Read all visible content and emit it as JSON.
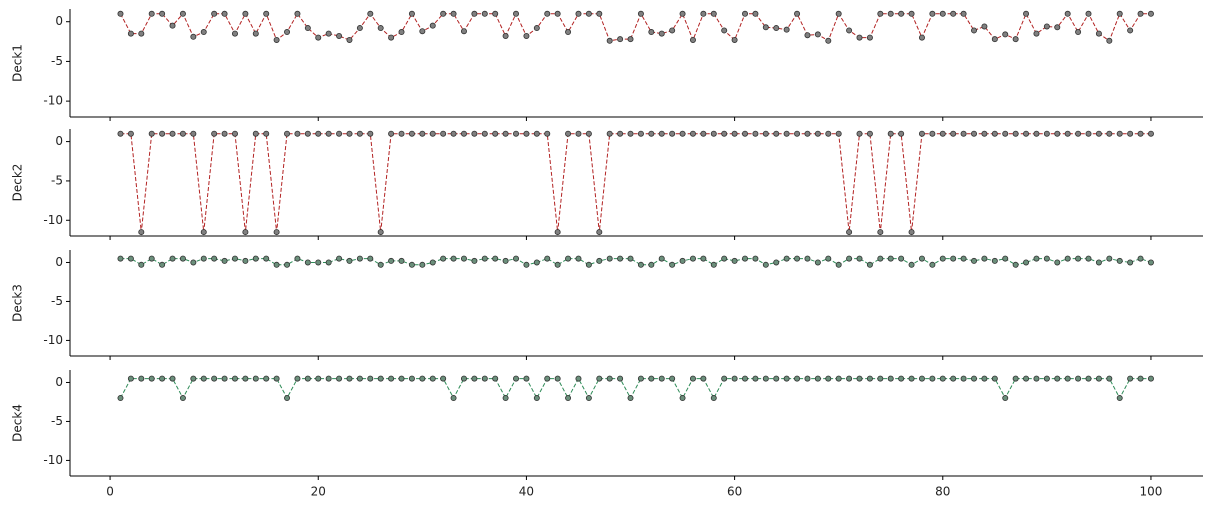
{
  "chart_data": [
    {
      "type": "line",
      "ylabel": "Deck1",
      "x": [
        1,
        2,
        3,
        4,
        5,
        6,
        7,
        8,
        9,
        10,
        11,
        12,
        13,
        14,
        15,
        16,
        17,
        18,
        19,
        20,
        21,
        22,
        23,
        24,
        25,
        26,
        27,
        28,
        29,
        30,
        31,
        32,
        33,
        34,
        35,
        36,
        37,
        38,
        39,
        40,
        41,
        42,
        43,
        44,
        45,
        46,
        47,
        48,
        49,
        50,
        51,
        52,
        53,
        54,
        55,
        56,
        57,
        58,
        59,
        60,
        61,
        62,
        63,
        64,
        65,
        66,
        67,
        68,
        69,
        70,
        71,
        72,
        73,
        74,
        75,
        76,
        77,
        78,
        79,
        80,
        81,
        82,
        83,
        84,
        85,
        86,
        87,
        88,
        89,
        90,
        91,
        92,
        93,
        94,
        95,
        96,
        97,
        98,
        99,
        100
      ],
      "series": [
        {
          "color": "#b22222",
          "marker_color": "#808080",
          "values": [
            1,
            -1.5,
            -1.5,
            1,
            1,
            -0.5,
            1,
            -1.9,
            -1.3,
            1,
            1,
            -1.5,
            1,
            -1.5,
            1,
            -2.3,
            -1.3,
            1,
            -0.8,
            -2,
            -1.5,
            -1.8,
            -2.3,
            -0.8,
            1,
            -0.8,
            -2,
            -1.3,
            1,
            -1.2,
            -0.5,
            1,
            1,
            -1.2,
            1,
            1,
            1,
            -1.8,
            1,
            -1.8,
            -0.8,
            1,
            1,
            -1.3,
            1,
            1,
            1,
            -2.4,
            -2.2,
            -2.2,
            1,
            -1.3,
            -1.5,
            -1.1,
            1,
            -2.3,
            1,
            1,
            -1.1,
            -2.3,
            1,
            1,
            -0.7,
            -0.8,
            -1,
            1,
            -1.7,
            -1.6,
            -2.4,
            1,
            -1.1,
            -2,
            -2,
            1,
            1,
            1,
            1,
            -2,
            1,
            1,
            1,
            1,
            -1.1,
            -0.6,
            -2.2,
            -1.6,
            -2.2,
            1,
            -1.5,
            -0.6,
            -0.7,
            1,
            -1.3,
            1,
            -1.5,
            -2.4,
            1,
            -1.1,
            1,
            1
          ]
        }
      ],
      "xlim": [
        -3.85,
        105
      ],
      "xticks": [
        0,
        20,
        40,
        60,
        80,
        100
      ],
      "ylim": [
        -12,
        1.6
      ],
      "yticks": [
        -10,
        -5,
        0
      ]
    },
    {
      "type": "line",
      "ylabel": "Deck2",
      "x": [
        1,
        2,
        3,
        4,
        5,
        6,
        7,
        8,
        9,
        10,
        11,
        12,
        13,
        14,
        15,
        16,
        17,
        18,
        19,
        20,
        21,
        22,
        23,
        24,
        25,
        26,
        27,
        28,
        29,
        30,
        31,
        32,
        33,
        34,
        35,
        36,
        37,
        38,
        39,
        40,
        41,
        42,
        43,
        44,
        45,
        46,
        47,
        48,
        49,
        50,
        51,
        52,
        53,
        54,
        55,
        56,
        57,
        58,
        59,
        60,
        61,
        62,
        63,
        64,
        65,
        66,
        67,
        68,
        69,
        70,
        71,
        72,
        73,
        74,
        75,
        76,
        77,
        78,
        79,
        80,
        81,
        82,
        83,
        84,
        85,
        86,
        87,
        88,
        89,
        90,
        91,
        92,
        93,
        94,
        95,
        96,
        97,
        98,
        99,
        100
      ],
      "series": [
        {
          "color": "#b22222",
          "marker_color": "#808080",
          "values": [
            1,
            1,
            -11.5,
            1,
            1,
            1,
            1,
            1,
            -11.5,
            1,
            1,
            1,
            -11.5,
            1,
            1,
            -11.5,
            1,
            1,
            1,
            1,
            1,
            1,
            1,
            1,
            1,
            -11.5,
            1,
            1,
            1,
            1,
            1,
            1,
            1,
            1,
            1,
            1,
            1,
            1,
            1,
            1,
            1,
            1,
            -11.5,
            1,
            1,
            1,
            -11.5,
            1,
            1,
            1,
            1,
            1,
            1,
            1,
            1,
            1,
            1,
            1,
            1,
            1,
            1,
            1,
            1,
            1,
            1,
            1,
            1,
            1,
            1,
            1,
            -11.5,
            1,
            1,
            -11.5,
            1,
            1,
            -11.5,
            1,
            1,
            1,
            1,
            1,
            1,
            1,
            1,
            1,
            1,
            1,
            1,
            1,
            1,
            1,
            1,
            1,
            1,
            1,
            1,
            1,
            1,
            1
          ]
        }
      ],
      "xlim": [
        -3.85,
        105
      ],
      "xticks": [
        0,
        20,
        40,
        60,
        80,
        100
      ],
      "ylim": [
        -12,
        1.6
      ],
      "yticks": [
        -10,
        -5,
        0
      ]
    },
    {
      "type": "line",
      "ylabel": "Deck3",
      "x": [
        1,
        2,
        3,
        4,
        5,
        6,
        7,
        8,
        9,
        10,
        11,
        12,
        13,
        14,
        15,
        16,
        17,
        18,
        19,
        20,
        21,
        22,
        23,
        24,
        25,
        26,
        27,
        28,
        29,
        30,
        31,
        32,
        33,
        34,
        35,
        36,
        37,
        38,
        39,
        40,
        41,
        42,
        43,
        44,
        45,
        46,
        47,
        48,
        49,
        50,
        51,
        52,
        53,
        54,
        55,
        56,
        57,
        58,
        59,
        60,
        61,
        62,
        63,
        64,
        65,
        66,
        67,
        68,
        69,
        70,
        71,
        72,
        73,
        74,
        75,
        76,
        77,
        78,
        79,
        80,
        81,
        82,
        83,
        84,
        85,
        86,
        87,
        88,
        89,
        90,
        91,
        92,
        93,
        94,
        95,
        96,
        97,
        98,
        99,
        100
      ],
      "series": [
        {
          "color": "#2e8b57",
          "marker_color": "#6b8f7b",
          "values": [
            0.5,
            0.5,
            -0.3,
            0.5,
            -0.3,
            0.5,
            0.5,
            0,
            0.5,
            0.5,
            0.2,
            0.5,
            0.2,
            0.5,
            0.5,
            -0.3,
            -0.3,
            0.5,
            0,
            0,
            0,
            0.5,
            0.2,
            0.5,
            0.5,
            -0.3,
            0.2,
            0.2,
            -0.3,
            -0.3,
            0,
            0.5,
            0.5,
            0.5,
            0.2,
            0.5,
            0.5,
            0.2,
            0.5,
            -0.3,
            0,
            0.5,
            -0.3,
            0.5,
            0.5,
            -0.3,
            0.2,
            0.5,
            0.5,
            0.5,
            -0.3,
            -0.3,
            0.5,
            -0.3,
            0.2,
            0.5,
            0.5,
            -0.3,
            0.5,
            0.2,
            0.5,
            0.5,
            -0.3,
            0,
            0.5,
            0.5,
            0.5,
            0,
            0.5,
            -0.3,
            0.5,
            0.5,
            -0.3,
            0.5,
            0.5,
            0.5,
            -0.3,
            0.5,
            -0.3,
            0.5,
            0.5,
            0.5,
            0.2,
            0.5,
            0.2,
            0.5,
            -0.3,
            0,
            0.5,
            0.5,
            0,
            0.5,
            0.5,
            0.5,
            0,
            0.5,
            0.2,
            0,
            0.5,
            0
          ]
        }
      ],
      "xlim": [
        -3.85,
        105
      ],
      "xticks": [
        0,
        20,
        40,
        60,
        80,
        100
      ],
      "ylim": [
        -12,
        1.6
      ],
      "yticks": [
        -10,
        -5,
        0
      ]
    },
    {
      "type": "line",
      "ylabel": "Deck4",
      "x": [
        1,
        2,
        3,
        4,
        5,
        6,
        7,
        8,
        9,
        10,
        11,
        12,
        13,
        14,
        15,
        16,
        17,
        18,
        19,
        20,
        21,
        22,
        23,
        24,
        25,
        26,
        27,
        28,
        29,
        30,
        31,
        32,
        33,
        34,
        35,
        36,
        37,
        38,
        39,
        40,
        41,
        42,
        43,
        44,
        45,
        46,
        47,
        48,
        49,
        50,
        51,
        52,
        53,
        54,
        55,
        56,
        57,
        58,
        59,
        60,
        61,
        62,
        63,
        64,
        65,
        66,
        67,
        68,
        69,
        70,
        71,
        72,
        73,
        74,
        75,
        76,
        77,
        78,
        79,
        80,
        81,
        82,
        83,
        84,
        85,
        86,
        87,
        88,
        89,
        90,
        91,
        92,
        93,
        94,
        95,
        96,
        97,
        98,
        99,
        100
      ],
      "series": [
        {
          "color": "#2e8b57",
          "marker_color": "#6b8f7b",
          "values": [
            -2,
            0.5,
            0.5,
            0.5,
            0.5,
            0.5,
            -2,
            0.5,
            0.5,
            0.5,
            0.5,
            0.5,
            0.5,
            0.5,
            0.5,
            0.5,
            -2,
            0.5,
            0.5,
            0.5,
            0.5,
            0.5,
            0.5,
            0.5,
            0.5,
            0.5,
            0.5,
            0.5,
            0.5,
            0.5,
            0.5,
            0.5,
            -2,
            0.5,
            0.5,
            0.5,
            0.5,
            -2,
            0.5,
            0.5,
            -2,
            0.5,
            0.5,
            -2,
            0.5,
            -2,
            0.5,
            0.5,
            0.5,
            -2,
            0.5,
            0.5,
            0.5,
            0.5,
            -2,
            0.5,
            0.5,
            -2,
            0.5,
            0.5,
            0.5,
            0.5,
            0.5,
            0.5,
            0.5,
            0.5,
            0.5,
            0.5,
            0.5,
            0.5,
            0.5,
            0.5,
            0.5,
            0.5,
            0.5,
            0.5,
            0.5,
            0.5,
            0.5,
            0.5,
            0.5,
            0.5,
            0.5,
            0.5,
            0.5,
            -2,
            0.5,
            0.5,
            0.5,
            0.5,
            0.5,
            0.5,
            0.5,
            0.5,
            0.5,
            0.5,
            -2,
            0.5,
            0.5,
            0.5
          ]
        }
      ],
      "xlim": [
        -3.85,
        105
      ],
      "xticks": [
        0,
        20,
        40,
        60,
        80,
        100
      ],
      "ylim": [
        -12,
        1.6
      ],
      "yticks": [
        -10,
        -5,
        0
      ]
    }
  ]
}
